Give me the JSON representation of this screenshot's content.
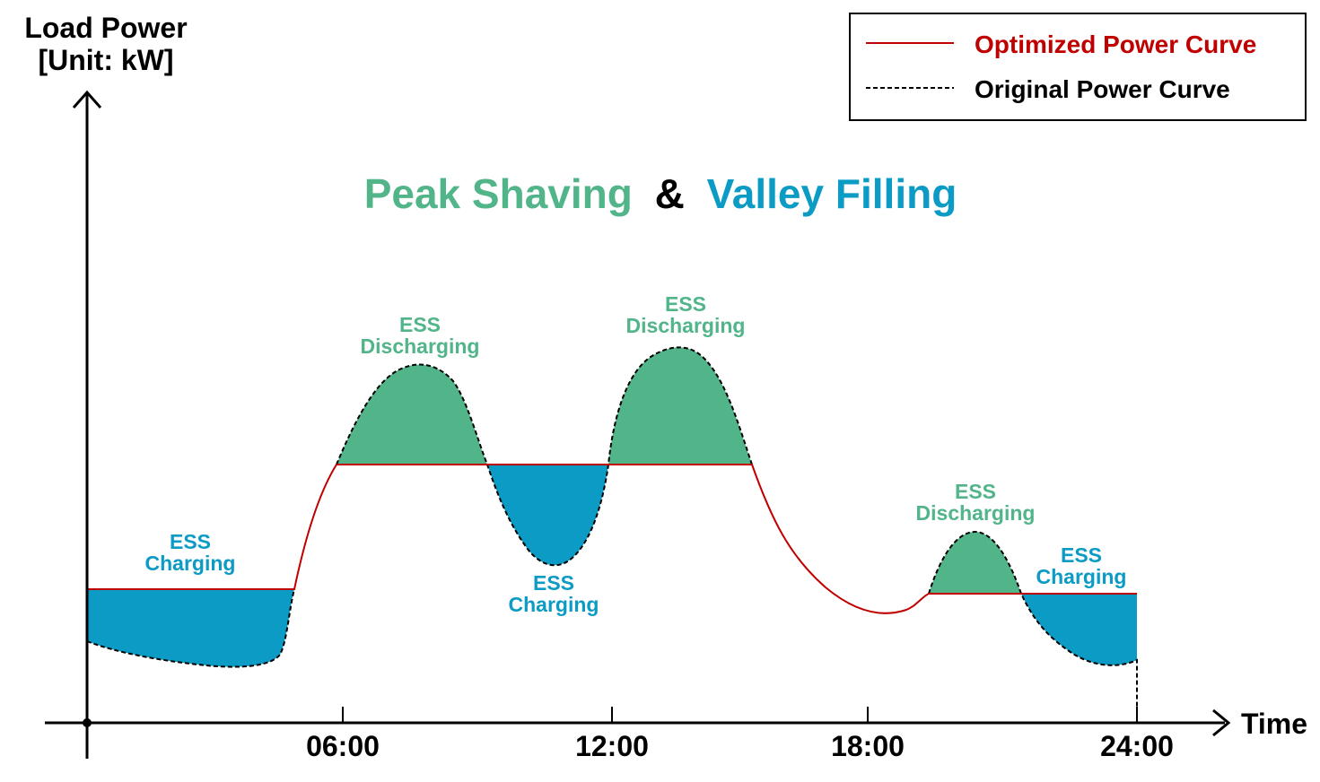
{
  "axes": {
    "y_label_line1": "Load Power",
    "y_label_line2": "[Unit: kW]",
    "x_label": "Time",
    "x_ticks": [
      "06:00",
      "12:00",
      "18:00",
      "24:00"
    ]
  },
  "title": {
    "part1": "Peak Shaving",
    "amp": "&",
    "part2": "Valley Filling"
  },
  "legend": {
    "optimized": "Optimized Power Curve",
    "original": "Original Power Curve"
  },
  "annotations": {
    "charging_1": {
      "line1": "ESS",
      "line2": "Charging"
    },
    "discharging_1": {
      "line1": "ESS",
      "line2": "Discharging"
    },
    "charging_2": {
      "line1": "ESS",
      "line2": "Charging"
    },
    "discharging_2": {
      "line1": "ESS",
      "line2": "Discharging"
    },
    "discharging_3": {
      "line1": "ESS",
      "line2": "Discharging"
    },
    "charging_3": {
      "line1": "ESS",
      "line2": "Charging"
    }
  },
  "colors": {
    "discharging": "#52b58a",
    "charging": "#0b9bc4",
    "optimized_line": "#c00000",
    "original_line": "#000000",
    "legend_optimized_text": "#c00000"
  }
}
